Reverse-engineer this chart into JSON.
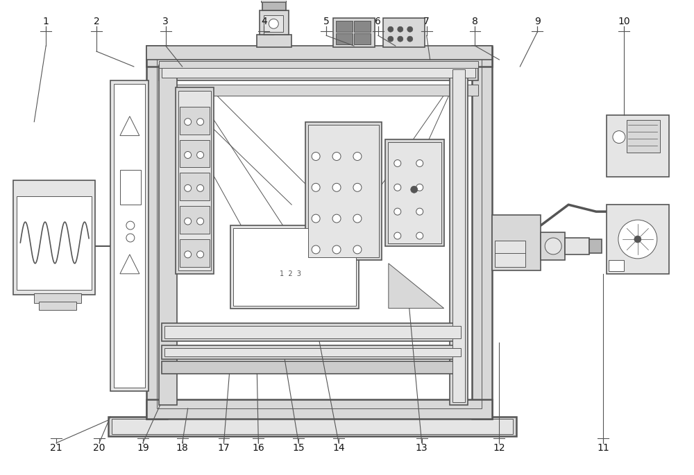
{
  "bg_color": "#ffffff",
  "line_color": "#555555",
  "lw_thick": 1.8,
  "lw_med": 1.2,
  "lw_thin": 0.7,
  "label_fontsize": 10,
  "fig_width": 10.0,
  "fig_height": 6.85
}
